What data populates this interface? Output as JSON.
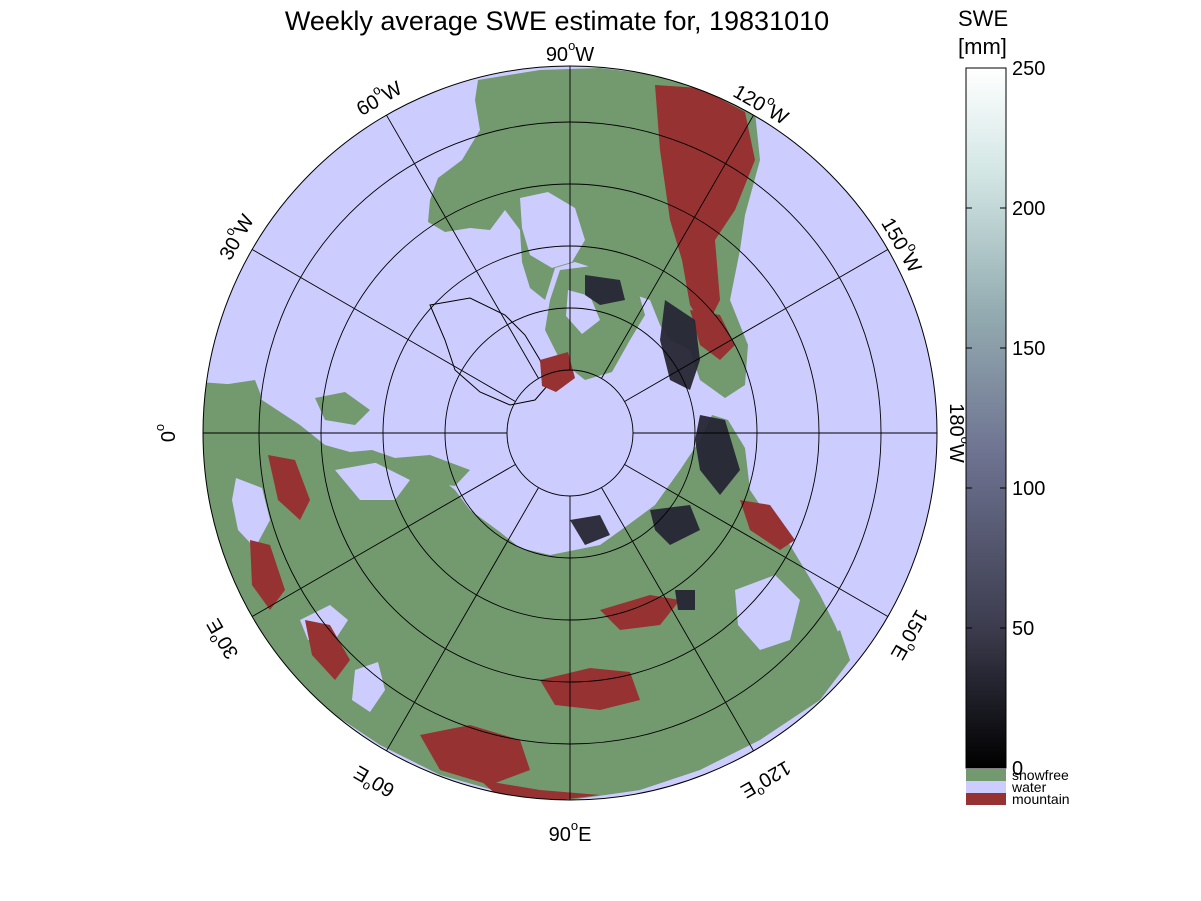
{
  "title": "Weekly average SWE estimate for, 19831010",
  "map": {
    "projection": "north-polar-stereographic",
    "longitude_labels": [
      {
        "deg": "90",
        "unit": "W"
      },
      {
        "deg": "120",
        "unit": "W"
      },
      {
        "deg": "150",
        "unit": "W"
      },
      {
        "deg": "180",
        "unit": "W"
      },
      {
        "deg": "150",
        "unit": "E"
      },
      {
        "deg": "120",
        "unit": "E"
      },
      {
        "deg": "90",
        "unit": "E"
      },
      {
        "deg": "60",
        "unit": "E"
      },
      {
        "deg": "30",
        "unit": "E"
      },
      {
        "deg": "0",
        "unit": ""
      },
      {
        "deg": "30",
        "unit": "W"
      },
      {
        "deg": "60",
        "unit": "W"
      }
    ],
    "colors": {
      "snowfree": "#73996f",
      "water": "#ccccff",
      "mountain": "#963232",
      "coast": "#000000"
    }
  },
  "colorbar": {
    "title_line1": "SWE",
    "title_line2": "[mm]",
    "ticks": [
      "0",
      "50",
      "100",
      "150",
      "200",
      "250"
    ],
    "range": [
      0,
      250
    ],
    "gradient": [
      "#000000",
      "#3c3c4e",
      "#6e7391",
      "#93abb0",
      "#d2e6e4",
      "#ffffff"
    ],
    "categories": [
      {
        "label": "snowfree",
        "color": "#73996f"
      },
      {
        "label": "water",
        "color": "#ccccff"
      },
      {
        "label": "mountain",
        "color": "#963232"
      }
    ]
  }
}
